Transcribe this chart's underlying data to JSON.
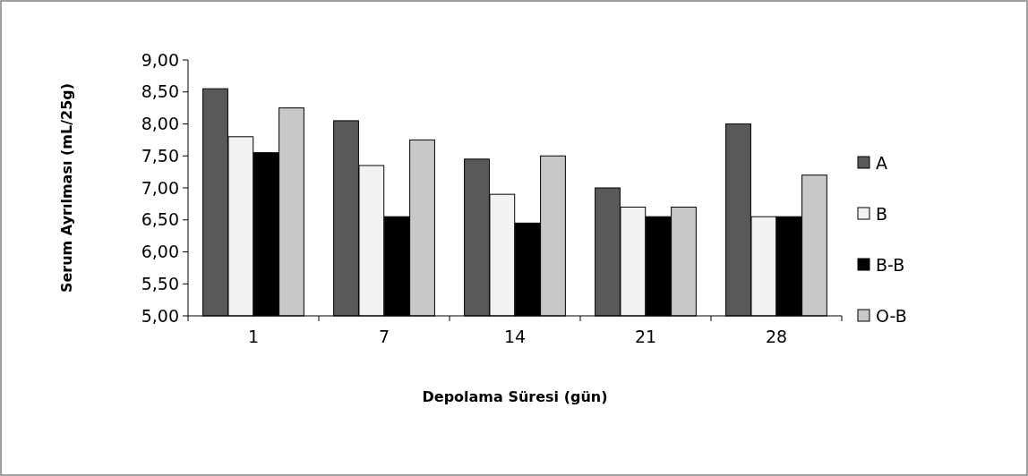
{
  "chart_data": {
    "type": "bar",
    "xlabel": "Depolama Süresi (gün)",
    "ylabel": "Serum Ayrılması (mL/25g)",
    "categories": [
      "1",
      "7",
      "14",
      "21",
      "28"
    ],
    "series": [
      {
        "name": "A",
        "color": "#595959",
        "values": [
          8.55,
          8.05,
          7.45,
          7.0,
          8.0
        ]
      },
      {
        "name": "B",
        "color": "#f2f2f2",
        "values": [
          7.8,
          7.35,
          6.9,
          6.7,
          6.55
        ]
      },
      {
        "name": "B-B",
        "color": "#000000",
        "values": [
          7.55,
          6.55,
          6.45,
          6.55,
          6.55
        ]
      },
      {
        "name": "O-B",
        "color": "#c8c8c8",
        "values": [
          8.25,
          7.75,
          7.5,
          6.7,
          7.2
        ]
      }
    ],
    "ylim": [
      5,
      9
    ],
    "yticks": [
      {
        "value": 5,
        "label": "5,00"
      },
      {
        "value": 5.5,
        "label": "5,50"
      },
      {
        "value": 6,
        "label": "6,00"
      },
      {
        "value": 6.5,
        "label": "6,50"
      },
      {
        "value": 7,
        "label": "7,00"
      },
      {
        "value": 7.5,
        "label": "7,50"
      },
      {
        "value": 8,
        "label": "8,00"
      },
      {
        "value": 8.5,
        "label": "8,50"
      },
      {
        "value": 9,
        "label": "9,00"
      }
    ],
    "grid": false,
    "legend": "right"
  }
}
